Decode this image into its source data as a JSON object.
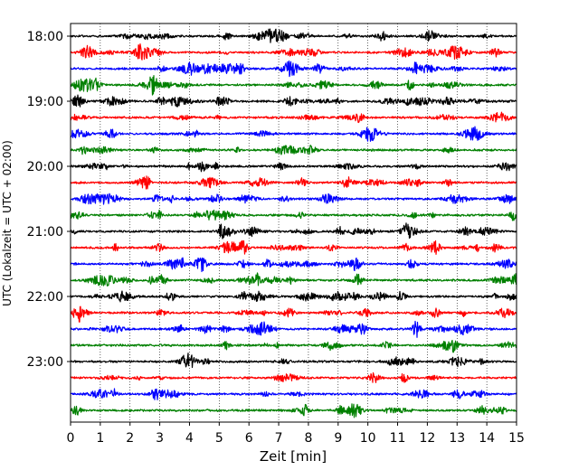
{
  "chart_data": {
    "type": "line",
    "title": "",
    "xlabel": "Zeit  [min]",
    "ylabel": "UTC (Lokalzeit = UTC + 02:00)",
    "xlim": [
      0,
      15
    ],
    "x_ticks": [
      "0",
      "1",
      "2",
      "3",
      "4",
      "5",
      "6",
      "7",
      "8",
      "9",
      "10",
      "11",
      "12",
      "13",
      "14",
      "15"
    ],
    "y_ticks": [
      "18:00",
      "19:00",
      "20:00",
      "21:00",
      "22:00",
      "23:00"
    ],
    "grid": "vertical-dotted",
    "legend": "none",
    "trace_interval_minutes": 15,
    "trace_colors": [
      "#000000",
      "#ff0000",
      "#0000ff",
      "#008000"
    ],
    "series": [
      {
        "start": "18:00",
        "color": "#000000"
      },
      {
        "start": "18:15",
        "color": "#ff0000"
      },
      {
        "start": "18:30",
        "color": "#0000ff"
      },
      {
        "start": "18:45",
        "color": "#008000"
      },
      {
        "start": "19:00",
        "color": "#000000"
      },
      {
        "start": "19:15",
        "color": "#ff0000"
      },
      {
        "start": "19:30",
        "color": "#0000ff"
      },
      {
        "start": "19:45",
        "color": "#008000"
      },
      {
        "start": "20:00",
        "color": "#000000"
      },
      {
        "start": "20:15",
        "color": "#ff0000"
      },
      {
        "start": "20:30",
        "color": "#0000ff"
      },
      {
        "start": "20:45",
        "color": "#008000"
      },
      {
        "start": "21:00",
        "color": "#000000"
      },
      {
        "start": "21:15",
        "color": "#ff0000"
      },
      {
        "start": "21:30",
        "color": "#0000ff"
      },
      {
        "start": "21:45",
        "color": "#008000"
      },
      {
        "start": "22:00",
        "color": "#000000"
      },
      {
        "start": "22:15",
        "color": "#ff0000"
      },
      {
        "start": "22:30",
        "color": "#0000ff"
      },
      {
        "start": "22:45",
        "color": "#008000"
      },
      {
        "start": "23:00",
        "color": "#000000"
      },
      {
        "start": "23:15",
        "color": "#ff0000"
      },
      {
        "start": "23:30",
        "color": "#0000ff"
      },
      {
        "start": "23:45",
        "color": "#008000"
      }
    ]
  }
}
